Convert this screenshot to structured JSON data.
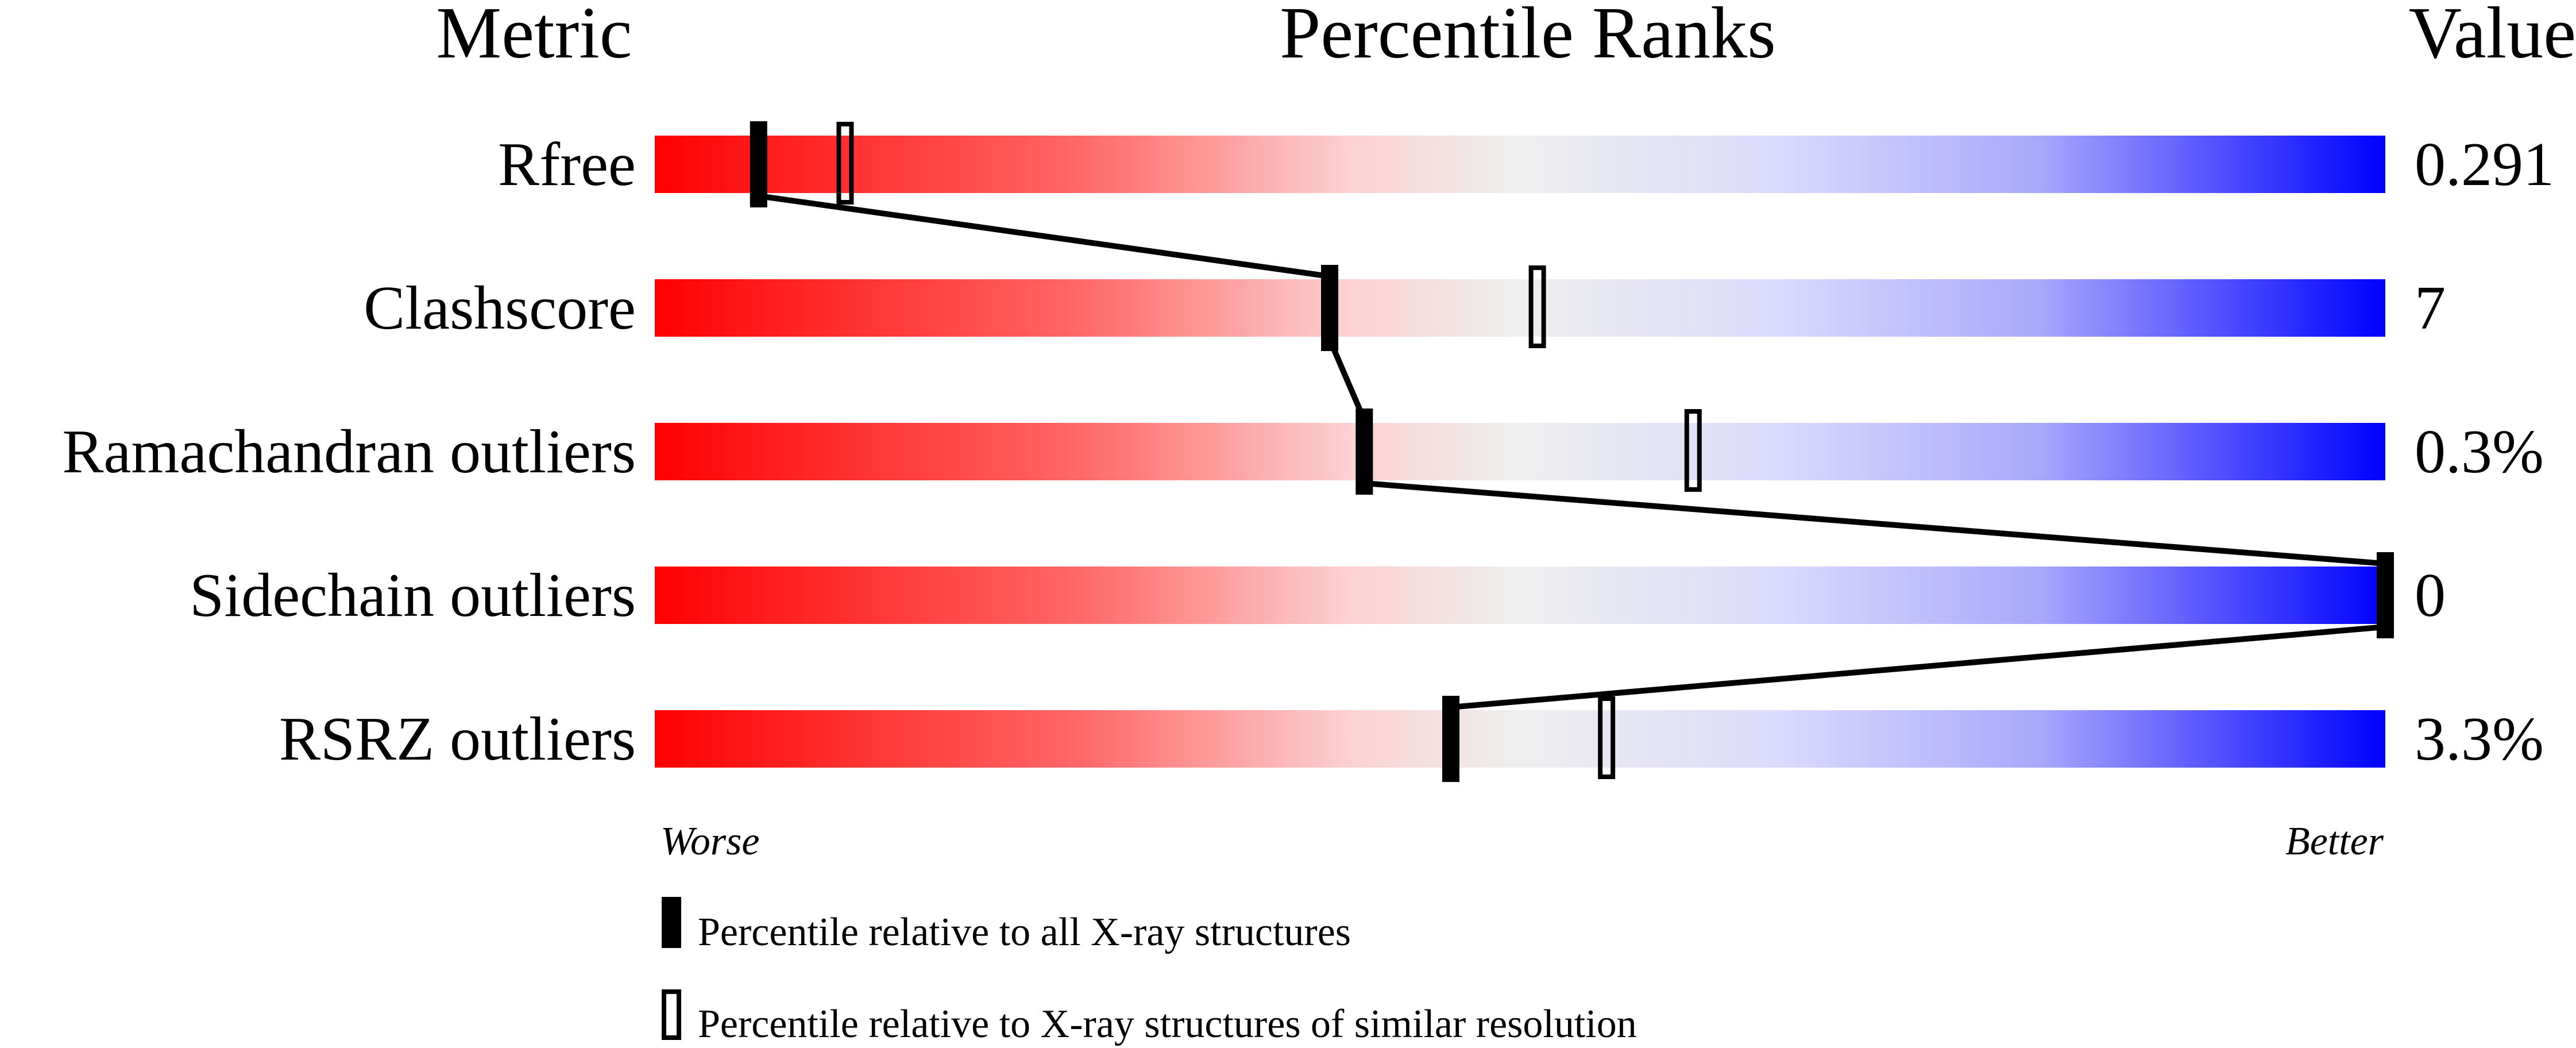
{
  "chart_data": {
    "type": "percentile-slider",
    "headers": {
      "metric": "Metric",
      "ranks": "Percentile Ranks",
      "value": "Value"
    },
    "axis": {
      "left": "Worse",
      "right": "Better",
      "range": [
        0,
        100
      ]
    },
    "legend": {
      "absolute": "Percentile relative to all X-ray structures",
      "relative": "Percentile relative to X-ray structures of similar resolution"
    },
    "gradient_colors": [
      "#ff0000",
      "#ff6a6a",
      "#fcd0d0",
      "#efefef",
      "#dadafc",
      "#a8a8fc",
      "#0000ff"
    ],
    "metrics": [
      {
        "name": "Rfree",
        "value": "0.291",
        "percentile_all": 6,
        "percentile_similar": 11
      },
      {
        "name": "Clashscore",
        "value": "7",
        "percentile_all": 39,
        "percentile_similar": 51
      },
      {
        "name": "Ramachandran outliers",
        "value": "0.3%",
        "percentile_all": 41,
        "percentile_similar": 60
      },
      {
        "name": "Sidechain outliers",
        "value": "0",
        "percentile_all": 100,
        "percentile_similar": null
      },
      {
        "name": "RSRZ outliers",
        "value": "3.3%",
        "percentile_all": 46,
        "percentile_similar": 55
      }
    ]
  }
}
